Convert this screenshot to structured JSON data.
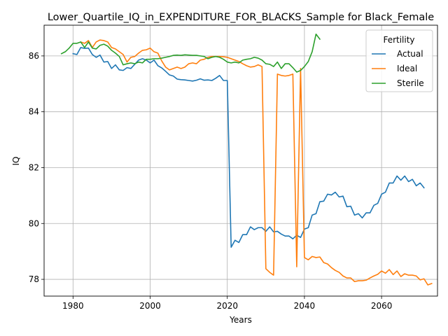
{
  "chart_data": {
    "type": "line",
    "title": "Lower_Quartile_IQ_in_EXPENDITURE_FOR_BLACKS_Sample for Black_Female",
    "xlabel": "Years",
    "ylabel": "IQ",
    "xlim": [
      1972.5,
      2074.5
    ],
    "ylim": [
      77.4,
      87.1
    ],
    "xticks": [
      1980,
      2000,
      2020,
      2040,
      2060
    ],
    "yticks": [
      78,
      80,
      82,
      84,
      86
    ],
    "grid": true,
    "legend": {
      "title": "Fertility",
      "placement": "top-right"
    },
    "series": [
      {
        "name": "Actual",
        "color": "#1f77b4",
        "points": [
          [
            1980,
            86.08
          ],
          [
            1981,
            86.05
          ],
          [
            1982,
            86.3
          ],
          [
            1983,
            86.27
          ],
          [
            1984,
            86.28
          ],
          [
            1985,
            86.05
          ],
          [
            1986,
            85.95
          ],
          [
            1987,
            86.03
          ],
          [
            1988,
            85.78
          ],
          [
            1989,
            85.8
          ],
          [
            1990,
            85.55
          ],
          [
            1991,
            85.68
          ],
          [
            1992,
            85.5
          ],
          [
            1993,
            85.48
          ],
          [
            1994,
            85.58
          ],
          [
            1995,
            85.55
          ],
          [
            1996,
            85.7
          ],
          [
            1997,
            85.85
          ],
          [
            1998,
            85.9
          ],
          [
            1999,
            85.85
          ],
          [
            2000,
            85.75
          ],
          [
            2001,
            85.85
          ],
          [
            2002,
            85.65
          ],
          [
            2003,
            85.57
          ],
          [
            2004,
            85.45
          ],
          [
            2005,
            85.32
          ],
          [
            2006,
            85.28
          ],
          [
            2007,
            85.17
          ],
          [
            2008,
            85.15
          ],
          [
            2009,
            85.14
          ],
          [
            2010,
            85.12
          ],
          [
            2011,
            85.1
          ],
          [
            2012,
            85.13
          ],
          [
            2013,
            85.18
          ],
          [
            2014,
            85.13
          ],
          [
            2015,
            85.14
          ],
          [
            2016,
            85.12
          ],
          [
            2017,
            85.2
          ],
          [
            2018,
            85.3
          ],
          [
            2019,
            85.12
          ],
          [
            2020,
            85.12
          ],
          [
            2021,
            79.15
          ],
          [
            2022,
            79.4
          ],
          [
            2023,
            79.32
          ],
          [
            2024,
            79.6
          ],
          [
            2025,
            79.6
          ],
          [
            2026,
            79.88
          ],
          [
            2027,
            79.78
          ],
          [
            2028,
            79.85
          ],
          [
            2029,
            79.85
          ],
          [
            2030,
            79.72
          ],
          [
            2031,
            79.88
          ],
          [
            2032,
            79.7
          ],
          [
            2033,
            79.72
          ],
          [
            2034,
            79.62
          ],
          [
            2035,
            79.55
          ],
          [
            2036,
            79.55
          ],
          [
            2037,
            79.45
          ],
          [
            2038,
            79.58
          ],
          [
            2039,
            79.5
          ],
          [
            2040,
            79.8
          ],
          [
            2041,
            79.85
          ],
          [
            2042,
            80.3
          ],
          [
            2043,
            80.35
          ],
          [
            2044,
            80.78
          ],
          [
            2045,
            80.8
          ],
          [
            2046,
            81.05
          ],
          [
            2047,
            81.02
          ],
          [
            2048,
            81.12
          ],
          [
            2049,
            80.95
          ],
          [
            2050,
            80.98
          ],
          [
            2051,
            80.6
          ],
          [
            2052,
            80.62
          ],
          [
            2053,
            80.3
          ],
          [
            2054,
            80.35
          ],
          [
            2055,
            80.2
          ],
          [
            2056,
            80.38
          ],
          [
            2057,
            80.38
          ],
          [
            2058,
            80.65
          ],
          [
            2059,
            80.72
          ],
          [
            2060,
            81.05
          ],
          [
            2061,
            81.12
          ],
          [
            2062,
            81.45
          ],
          [
            2063,
            81.45
          ],
          [
            2064,
            81.7
          ],
          [
            2065,
            81.55
          ],
          [
            2066,
            81.7
          ],
          [
            2067,
            81.5
          ],
          [
            2068,
            81.58
          ],
          [
            2069,
            81.35
          ],
          [
            2070,
            81.45
          ],
          [
            2071,
            81.28
          ]
        ]
      },
      {
        "name": "Ideal",
        "color": "#ff7f0e",
        "points": [
          [
            1982,
            86.5
          ],
          [
            1983,
            86.45
          ],
          [
            1984,
            86.55
          ],
          [
            1985,
            86.3
          ],
          [
            1986,
            86.5
          ],
          [
            1987,
            86.57
          ],
          [
            1988,
            86.55
          ],
          [
            1989,
            86.5
          ],
          [
            1990,
            86.3
          ],
          [
            1991,
            86.25
          ],
          [
            1992,
            86.15
          ],
          [
            1993,
            86.05
          ],
          [
            1994,
            85.78
          ],
          [
            1995,
            85.95
          ],
          [
            1996,
            85.98
          ],
          [
            1997,
            86.1
          ],
          [
            1998,
            86.2
          ],
          [
            1999,
            86.22
          ],
          [
            2000,
            86.28
          ],
          [
            2001,
            86.15
          ],
          [
            2002,
            86.1
          ],
          [
            2003,
            85.82
          ],
          [
            2004,
            85.6
          ],
          [
            2005,
            85.5
          ],
          [
            2006,
            85.55
          ],
          [
            2007,
            85.6
          ],
          [
            2008,
            85.55
          ],
          [
            2009,
            85.6
          ],
          [
            2010,
            85.72
          ],
          [
            2011,
            85.75
          ],
          [
            2012,
            85.72
          ],
          [
            2013,
            85.85
          ],
          [
            2014,
            85.88
          ],
          [
            2015,
            85.95
          ],
          [
            2016,
            85.98
          ],
          [
            2017,
            85.98
          ],
          [
            2018,
            85.98
          ],
          [
            2019,
            85.97
          ],
          [
            2020,
            85.95
          ],
          [
            2021,
            85.9
          ],
          [
            2022,
            85.85
          ],
          [
            2023,
            85.8
          ],
          [
            2024,
            85.72
          ],
          [
            2025,
            85.65
          ],
          [
            2026,
            85.6
          ],
          [
            2027,
            85.62
          ],
          [
            2028,
            85.68
          ],
          [
            2029,
            85.62
          ],
          [
            2030,
            78.38
          ],
          [
            2031,
            78.25
          ],
          [
            2032,
            78.15
          ],
          [
            2033,
            85.35
          ],
          [
            2034,
            85.3
          ],
          [
            2035,
            85.28
          ],
          [
            2036,
            85.3
          ],
          [
            2037,
            85.35
          ],
          [
            2038,
            78.45
          ],
          [
            2039,
            85.55
          ],
          [
            2040,
            78.78
          ],
          [
            2041,
            78.7
          ],
          [
            2042,
            78.82
          ],
          [
            2043,
            78.78
          ],
          [
            2044,
            78.8
          ],
          [
            2045,
            78.6
          ],
          [
            2046,
            78.55
          ],
          [
            2047,
            78.42
          ],
          [
            2048,
            78.32
          ],
          [
            2049,
            78.25
          ],
          [
            2050,
            78.12
          ],
          [
            2051,
            78.05
          ],
          [
            2052,
            78.05
          ],
          [
            2053,
            77.92
          ],
          [
            2054,
            77.95
          ],
          [
            2055,
            77.95
          ],
          [
            2056,
            77.97
          ],
          [
            2057,
            78.05
          ],
          [
            2058,
            78.12
          ],
          [
            2059,
            78.18
          ],
          [
            2060,
            78.3
          ],
          [
            2061,
            78.22
          ],
          [
            2062,
            78.35
          ],
          [
            2063,
            78.17
          ],
          [
            2064,
            78.3
          ],
          [
            2065,
            78.1
          ],
          [
            2066,
            78.2
          ],
          [
            2067,
            78.15
          ],
          [
            2068,
            78.15
          ],
          [
            2069,
            78.12
          ],
          [
            2070,
            77.98
          ],
          [
            2071,
            78.02
          ],
          [
            2072,
            77.8
          ],
          [
            2073,
            77.85
          ]
        ]
      },
      {
        "name": "Sterile",
        "color": "#2ca02c",
        "points": [
          [
            1977,
            86.08
          ],
          [
            1978,
            86.15
          ],
          [
            1979,
            86.28
          ],
          [
            1980,
            86.45
          ],
          [
            1981,
            86.45
          ],
          [
            1982,
            86.5
          ],
          [
            1983,
            86.3
          ],
          [
            1984,
            86.5
          ],
          [
            1985,
            86.28
          ],
          [
            1986,
            86.25
          ],
          [
            1987,
            86.38
          ],
          [
            1988,
            86.42
          ],
          [
            1989,
            86.35
          ],
          [
            1990,
            86.2
          ],
          [
            1991,
            86.1
          ],
          [
            1992,
            85.98
          ],
          [
            1993,
            85.68
          ],
          [
            1994,
            85.72
          ],
          [
            1995,
            85.75
          ],
          [
            1996,
            85.72
          ],
          [
            1997,
            85.78
          ],
          [
            1998,
            85.75
          ],
          [
            1999,
            85.88
          ],
          [
            2000,
            85.88
          ],
          [
            2001,
            85.9
          ],
          [
            2002,
            85.9
          ],
          [
            2003,
            85.92
          ],
          [
            2004,
            85.95
          ],
          [
            2005,
            85.98
          ],
          [
            2006,
            86.02
          ],
          [
            2007,
            86.03
          ],
          [
            2008,
            86.02
          ],
          [
            2009,
            86.04
          ],
          [
            2010,
            86.03
          ],
          [
            2011,
            86.02
          ],
          [
            2012,
            86.02
          ],
          [
            2013,
            86.0
          ],
          [
            2014,
            85.98
          ],
          [
            2015,
            85.9
          ],
          [
            2016,
            85.95
          ],
          [
            2017,
            85.98
          ],
          [
            2018,
            85.95
          ],
          [
            2019,
            85.88
          ],
          [
            2020,
            85.78
          ],
          [
            2021,
            85.75
          ],
          [
            2022,
            85.78
          ],
          [
            2023,
            85.75
          ],
          [
            2024,
            85.85
          ],
          [
            2025,
            85.88
          ],
          [
            2026,
            85.9
          ],
          [
            2027,
            85.95
          ],
          [
            2028,
            85.92
          ],
          [
            2029,
            85.85
          ],
          [
            2030,
            85.72
          ],
          [
            2031,
            85.7
          ],
          [
            2032,
            85.62
          ],
          [
            2033,
            85.78
          ],
          [
            2034,
            85.55
          ],
          [
            2035,
            85.72
          ],
          [
            2036,
            85.72
          ],
          [
            2037,
            85.58
          ],
          [
            2038,
            85.42
          ],
          [
            2039,
            85.48
          ],
          [
            2040,
            85.62
          ],
          [
            2041,
            85.8
          ],
          [
            2042,
            86.15
          ],
          [
            2043,
            86.78
          ],
          [
            2044,
            86.6
          ]
        ]
      }
    ]
  }
}
